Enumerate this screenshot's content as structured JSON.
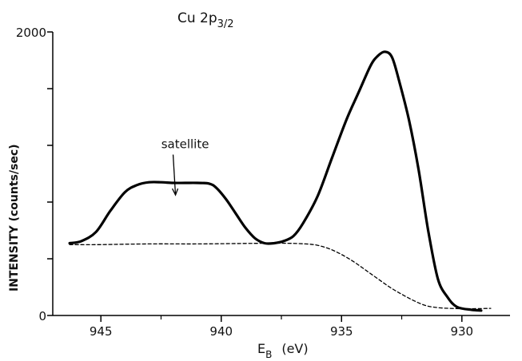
{
  "chart_data": {
    "type": "line",
    "title": "Cu 2p",
    "title_subscript": "3/2",
    "xlabel": "E",
    "xlabel_subscript": "B",
    "xlabel_unit": "(eV)",
    "ylabel": "INTENSITY (counts/sec)",
    "xlim": [
      947,
      928
    ],
    "ylim": [
      0,
      2000
    ],
    "x_reversed": true,
    "x_ticks": [
      945,
      940,
      935,
      930
    ],
    "x_tick_labels": [
      "945",
      "940",
      "935",
      "930"
    ],
    "x_minor_ticks": [
      942.5,
      937.5,
      932.5
    ],
    "y_ticks": [
      0,
      400,
      800,
      1200,
      1600,
      2000
    ],
    "y_tick_labels": [
      "0",
      "",
      "",
      "",
      "",
      "2000"
    ],
    "grid": false,
    "annotations": [
      {
        "text": "satellite",
        "arrow_to": [
          941.9,
          850
        ],
        "text_at": [
          941.5,
          1180
        ]
      }
    ],
    "series": [
      {
        "style": "solid",
        "color": "#000000",
        "x": [
          946.3,
          945.8,
          945.2,
          944.6,
          944.0,
          943.5,
          943.0,
          942.5,
          942.0,
          941.5,
          941.0,
          940.5,
          940.2,
          939.8,
          939.4,
          939.0,
          938.6,
          938.2,
          937.8,
          937.4,
          937.0,
          936.6,
          936.0,
          935.4,
          934.8,
          934.3,
          933.8,
          933.5,
          933.2,
          932.9,
          932.6,
          932.2,
          931.8,
          931.4,
          931.0,
          930.6,
          930.2,
          929.6,
          929.2
        ],
        "y": [
          510,
          525,
          590,
          740,
          870,
          920,
          940,
          940,
          935,
          935,
          935,
          930,
          900,
          820,
          720,
          620,
          545,
          510,
          510,
          525,
          560,
          650,
          840,
          1110,
          1380,
          1570,
          1760,
          1830,
          1860,
          1820,
          1650,
          1380,
          1030,
          600,
          260,
          130,
          60,
          40,
          35
        ]
      },
      {
        "style": "dashed",
        "color": "#000000",
        "x": [
          946.3,
          945.0,
          943.0,
          941.0,
          939.0,
          937.5,
          936.5,
          936.0,
          935.5,
          935.0,
          934.5,
          934.0,
          933.5,
          933.0,
          932.5,
          932.0,
          931.5,
          931.0,
          930.5,
          930.0,
          929.5,
          928.8
        ],
        "y": [
          500,
          500,
          505,
          505,
          508,
          510,
          505,
          495,
          470,
          430,
          380,
          320,
          260,
          200,
          150,
          105,
          70,
          55,
          50,
          48,
          48,
          50
        ]
      }
    ]
  }
}
